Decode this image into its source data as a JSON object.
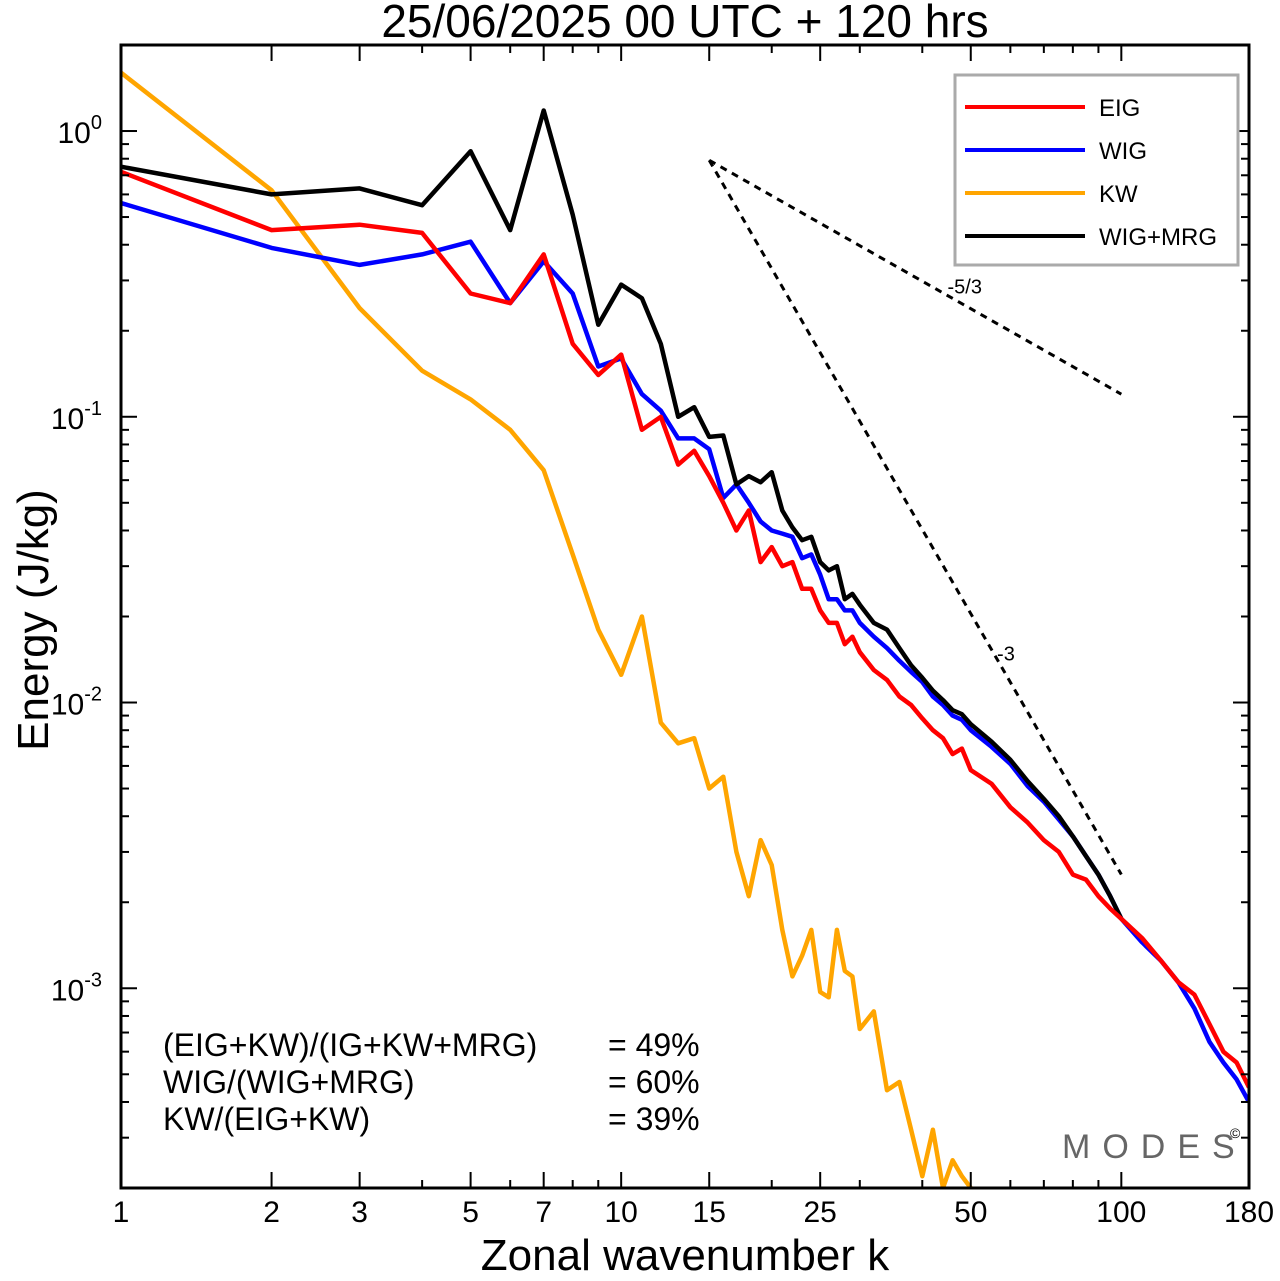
{
  "chart_data": {
    "type": "line",
    "title": "25/06/2025  00 UTC  + 120 hrs",
    "xlabel": "Zonal wavenumber k",
    "ylabel": "Energy (J/kg)",
    "xscale": "log",
    "yscale": "log",
    "xlim": [
      1,
      180
    ],
    "ylim": [
      0.0002,
      2.0
    ],
    "xticks": [
      1,
      2,
      3,
      5,
      7,
      10,
      15,
      25,
      50,
      100,
      180
    ],
    "xtick_labels": [
      "1",
      "2",
      "3",
      "5",
      "7",
      "10",
      "15",
      "25",
      "50",
      "100",
      "180"
    ],
    "yticks": [
      1,
      0.1,
      0.01,
      0.001
    ],
    "ytick_labels": [
      {
        "base": "10",
        "exp": "0"
      },
      {
        "base": "10",
        "exp": "-1"
      },
      {
        "base": "10",
        "exp": "-2"
      },
      {
        "base": "10",
        "exp": "-3"
      }
    ],
    "grid": false,
    "legend_position": "top-right",
    "series": [
      {
        "name": "EIG",
        "color": "#ff0000",
        "x": [
          1,
          2,
          3,
          4,
          5,
          6,
          7,
          8,
          9,
          10,
          11,
          12,
          13,
          14,
          15,
          16,
          17,
          18,
          19,
          20,
          21,
          22,
          23,
          24,
          25,
          26,
          27,
          28,
          29,
          30,
          32,
          34,
          36,
          38,
          40,
          42,
          44,
          46,
          48,
          50,
          55,
          60,
          65,
          70,
          75,
          80,
          85,
          90,
          95,
          100,
          110,
          120,
          130,
          140,
          150,
          160,
          170,
          180
        ],
        "y": [
          0.72,
          0.45,
          0.47,
          0.44,
          0.27,
          0.25,
          0.37,
          0.18,
          0.14,
          0.165,
          0.09,
          0.1,
          0.068,
          0.076,
          0.062,
          0.05,
          0.04,
          0.047,
          0.031,
          0.035,
          0.03,
          0.031,
          0.025,
          0.025,
          0.021,
          0.019,
          0.019,
          0.016,
          0.017,
          0.015,
          0.013,
          0.012,
          0.0105,
          0.0098,
          0.0088,
          0.008,
          0.0075,
          0.0066,
          0.0069,
          0.0058,
          0.0052,
          0.0043,
          0.0038,
          0.0033,
          0.003,
          0.0025,
          0.0024,
          0.0021,
          0.0019,
          0.00175,
          0.0015,
          0.00125,
          0.00105,
          0.00095,
          0.00075,
          0.0006,
          0.00055,
          0.00045
        ]
      },
      {
        "name": "WIG",
        "color": "#0000ff",
        "x": [
          1,
          2,
          3,
          4,
          5,
          6,
          7,
          8,
          9,
          10,
          11,
          12,
          13,
          14,
          15,
          16,
          17,
          18,
          19,
          20,
          21,
          22,
          23,
          24,
          25,
          26,
          27,
          28,
          29,
          30,
          32,
          34,
          36,
          38,
          40,
          42,
          44,
          46,
          48,
          50,
          55,
          60,
          65,
          70,
          75,
          80,
          85,
          90,
          95,
          100,
          110,
          120,
          130,
          140,
          150,
          160,
          170,
          180
        ],
        "y": [
          0.56,
          0.39,
          0.34,
          0.37,
          0.41,
          0.25,
          0.35,
          0.27,
          0.15,
          0.16,
          0.12,
          0.105,
          0.084,
          0.084,
          0.077,
          0.052,
          0.058,
          0.05,
          0.043,
          0.04,
          0.039,
          0.038,
          0.032,
          0.033,
          0.028,
          0.023,
          0.023,
          0.021,
          0.021,
          0.019,
          0.017,
          0.0155,
          0.014,
          0.0128,
          0.0118,
          0.0105,
          0.0098,
          0.009,
          0.0087,
          0.008,
          0.007,
          0.0061,
          0.0051,
          0.0045,
          0.0039,
          0.0034,
          0.0029,
          0.0025,
          0.0021,
          0.00175,
          0.00145,
          0.00125,
          0.00105,
          0.00085,
          0.00065,
          0.00055,
          0.00048,
          0.0004
        ]
      },
      {
        "name": "KW",
        "color": "#ffa500",
        "x": [
          1,
          2,
          3,
          4,
          5,
          6,
          7,
          8,
          9,
          10,
          11,
          12,
          13,
          14,
          15,
          16,
          17,
          18,
          19,
          20,
          21,
          22,
          23,
          24,
          25,
          26,
          27,
          28,
          29,
          30,
          32,
          34,
          36,
          38,
          40,
          42,
          44,
          46,
          48,
          50
        ],
        "y": [
          1.6,
          0.62,
          0.24,
          0.145,
          0.115,
          0.09,
          0.065,
          0.033,
          0.018,
          0.0125,
          0.02,
          0.0085,
          0.0072,
          0.0075,
          0.005,
          0.0055,
          0.003,
          0.0021,
          0.0033,
          0.0027,
          0.0016,
          0.0011,
          0.0013,
          0.0016,
          0.00097,
          0.00093,
          0.0016,
          0.00115,
          0.0011,
          0.00072,
          0.00083,
          0.00044,
          0.00047,
          0.00032,
          0.00022,
          0.00032,
          0.0002,
          0.00025,
          0.00022,
          0.0002
        ]
      },
      {
        "name": "WIG+MRG",
        "color": "#000000",
        "x": [
          1,
          2,
          3,
          4,
          5,
          6,
          7,
          8,
          9,
          10,
          11,
          12,
          13,
          14,
          15,
          16,
          17,
          18,
          19,
          20,
          21,
          22,
          23,
          24,
          25,
          26,
          27,
          28,
          29,
          30,
          32,
          34,
          36,
          38,
          40,
          42,
          44,
          46,
          48,
          50,
          55,
          60,
          65,
          70,
          75,
          80,
          85,
          90,
          95,
          100
        ],
        "y": [
          0.75,
          0.6,
          0.63,
          0.55,
          0.85,
          0.45,
          1.18,
          0.51,
          0.21,
          0.29,
          0.26,
          0.18,
          0.1,
          0.108,
          0.085,
          0.086,
          0.058,
          0.062,
          0.059,
          0.064,
          0.047,
          0.041,
          0.037,
          0.038,
          0.031,
          0.029,
          0.03,
          0.023,
          0.024,
          0.022,
          0.019,
          0.018,
          0.0155,
          0.0135,
          0.0122,
          0.011,
          0.0102,
          0.0094,
          0.0091,
          0.0084,
          0.0073,
          0.0063,
          0.0053,
          0.0046,
          0.004,
          0.0034,
          0.0029,
          0.0025,
          0.0021,
          0.00175
        ]
      }
    ],
    "reference_slopes": [
      {
        "label": "-5/3",
        "x": [
          15,
          100
        ],
        "y": [
          0.79,
          0.12
        ]
      },
      {
        "label": "-3",
        "x": [
          15,
          100
        ],
        "y": [
          0.79,
          0.0025
        ]
      }
    ],
    "stats": [
      {
        "label": "(EIG+KW)/(IG+KW+MRG)",
        "value": "= 49%"
      },
      {
        "label": "WIG/(WIG+MRG)",
        "value": "= 60%"
      },
      {
        "label": "KW/(EIG+KW)",
        "value": "= 39%"
      }
    ],
    "watermark": "MODES",
    "watermark_mark": "©"
  }
}
